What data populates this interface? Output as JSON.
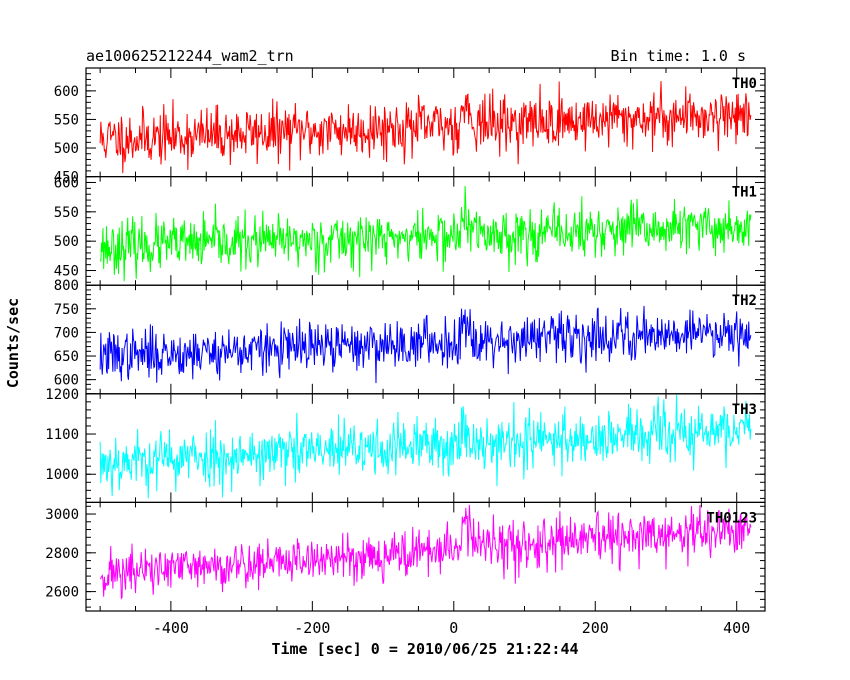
{
  "chart_data": {
    "type": "line",
    "title": "ae100625212244_wam2_trn",
    "subtitle": "Bin time: 1.0 s",
    "xlabel": "Time [sec] 0 = 2010/06/25 21:22:44",
    "ylabel": "Counts/sec",
    "xlim": [
      -520,
      440
    ],
    "x_range": [
      -500,
      420
    ],
    "bin_time": 1.0,
    "xticks": [
      -400,
      -200,
      0,
      200,
      400
    ],
    "grid": false,
    "panels": [
      {
        "name": "TH0",
        "color": "#ff0000",
        "ylim": [
          450,
          640
        ],
        "yticks": [
          450,
          500,
          550,
          600
        ],
        "base_start": 515,
        "base_end": 560,
        "noise_sd": 24,
        "burst": {
          "x": 15,
          "amplitude": 45
        },
        "seed": 11
      },
      {
        "name": "TH1",
        "color": "#00ff00",
        "ylim": [
          425,
          610
        ],
        "yticks": [
          450,
          500,
          550,
          600
        ],
        "base_start": 490,
        "base_end": 525,
        "noise_sd": 22,
        "burst": {
          "x": 15,
          "amplitude": 35
        },
        "seed": 23
      },
      {
        "name": "TH2",
        "color": "#0000ff",
        "ylim": [
          570,
          800
        ],
        "yticks": [
          600,
          650,
          700,
          750,
          800
        ],
        "base_start": 650,
        "base_end": 705,
        "noise_sd": 26,
        "burst": {
          "x": 15,
          "amplitude": 60
        },
        "seed": 37
      },
      {
        "name": "TH3",
        "color": "#00ffff",
        "ylim": [
          930,
          1200
        ],
        "yticks": [
          1000,
          1100,
          1200
        ],
        "base_start": 1030,
        "base_end": 1110,
        "noise_sd": 36,
        "burst": {
          "x": 15,
          "amplitude": 50
        },
        "seed": 53
      },
      {
        "name": "TH0123",
        "color": "#ff00ff",
        "ylim": [
          2500,
          3060
        ],
        "yticks": [
          2600,
          2800,
          3000
        ],
        "base_start": 2690,
        "base_end": 2920,
        "noise_sd": 62,
        "burst": {
          "x": 15,
          "amplitude": 220
        },
        "seed": 71
      }
    ]
  }
}
